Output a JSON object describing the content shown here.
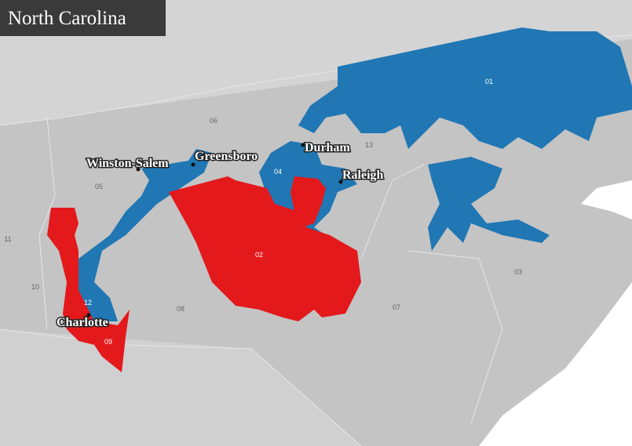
{
  "title": "North Carolina",
  "cities": [
    "Winston-Salem",
    "Greensboro",
    "Durham",
    "Raleigh",
    "Charlotte"
  ],
  "districts": [
    "01",
    "06",
    "13",
    "04",
    "05",
    "11",
    "10",
    "02",
    "12",
    "08",
    "09",
    "07",
    "03"
  ]
}
